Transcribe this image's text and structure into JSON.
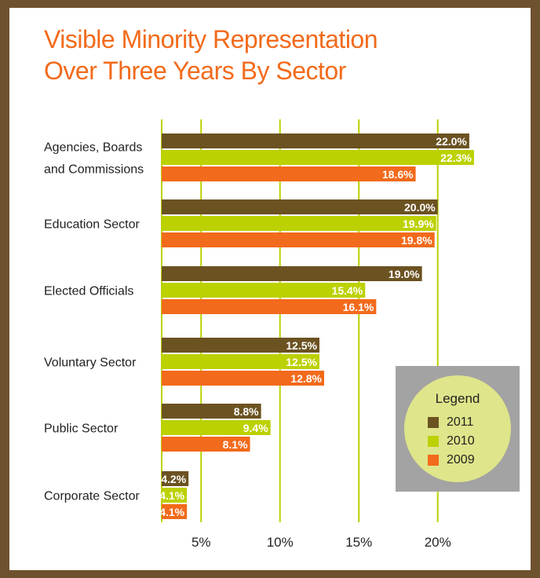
{
  "chart_data": {
    "type": "bar",
    "orientation": "horizontal",
    "title": "Visible Minority Representation\nOver Three Years By Sector",
    "title_lines": [
      "Visible Minority Representation",
      "Over Three Years By Sector"
    ],
    "categories": [
      [
        "Agencies, Boards",
        "and Commissions"
      ],
      [
        "Education Sector"
      ],
      [
        "Elected Officials"
      ],
      [
        "Voluntary Sector"
      ],
      [
        "Public Sector"
      ],
      [
        "Corporate Sector"
      ]
    ],
    "series": [
      {
        "name": "2011",
        "color": "#6b5221",
        "values": [
          22.0,
          20.0,
          19.0,
          12.5,
          8.8,
          4.2
        ],
        "labels": [
          "22.0%",
          "20.0%",
          "19.0%",
          "12.5%",
          "8.8%",
          "4.2%"
        ]
      },
      {
        "name": "2010",
        "color": "#bcd100",
        "values": [
          22.3,
          19.9,
          15.4,
          12.5,
          9.4,
          4.1
        ],
        "labels": [
          "22.3%",
          "19.9%",
          "15.4%",
          "12.5%",
          "9.4%",
          "4.1%"
        ]
      },
      {
        "name": "2009",
        "color": "#f26a1b",
        "values": [
          18.6,
          19.8,
          16.1,
          12.8,
          8.1,
          4.1
        ],
        "labels": [
          "18.6%",
          "19.8%",
          "16.1%",
          "12.8%",
          "8.1%",
          "4.1%"
        ]
      }
    ],
    "xticks": [
      5,
      10,
      15,
      20
    ],
    "xtick_labels": [
      "5%",
      "10%",
      "15%",
      "20%"
    ],
    "xlim": [
      2.5,
      23
    ],
    "gridline_color": "#bcd100",
    "grid": true,
    "legend": {
      "title": "Legend",
      "position": "bottom-right"
    }
  }
}
